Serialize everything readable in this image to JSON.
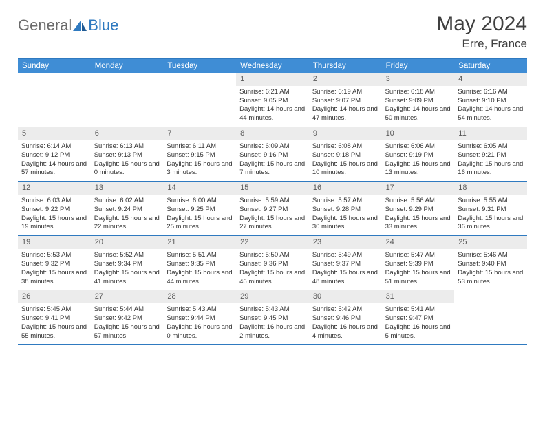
{
  "logo": {
    "general": "General",
    "blue": "Blue"
  },
  "title": "May 2024",
  "location": "Erre, France",
  "colors": {
    "header_bg": "#3f8dd5",
    "border": "#2f7ac0",
    "daynum_bg": "#ececec",
    "text": "#333333",
    "title_text": "#404040"
  },
  "weekdays": [
    "Sunday",
    "Monday",
    "Tuesday",
    "Wednesday",
    "Thursday",
    "Friday",
    "Saturday"
  ],
  "weeks": [
    [
      {
        "n": "",
        "sr": "",
        "ss": "",
        "dl": ""
      },
      {
        "n": "",
        "sr": "",
        "ss": "",
        "dl": ""
      },
      {
        "n": "",
        "sr": "",
        "ss": "",
        "dl": ""
      },
      {
        "n": "1",
        "sr": "6:21 AM",
        "ss": "9:05 PM",
        "dl": "14 hours and 44 minutes."
      },
      {
        "n": "2",
        "sr": "6:19 AM",
        "ss": "9:07 PM",
        "dl": "14 hours and 47 minutes."
      },
      {
        "n": "3",
        "sr": "6:18 AM",
        "ss": "9:09 PM",
        "dl": "14 hours and 50 minutes."
      },
      {
        "n": "4",
        "sr": "6:16 AM",
        "ss": "9:10 PM",
        "dl": "14 hours and 54 minutes."
      }
    ],
    [
      {
        "n": "5",
        "sr": "6:14 AM",
        "ss": "9:12 PM",
        "dl": "14 hours and 57 minutes."
      },
      {
        "n": "6",
        "sr": "6:13 AM",
        "ss": "9:13 PM",
        "dl": "15 hours and 0 minutes."
      },
      {
        "n": "7",
        "sr": "6:11 AM",
        "ss": "9:15 PM",
        "dl": "15 hours and 3 minutes."
      },
      {
        "n": "8",
        "sr": "6:09 AM",
        "ss": "9:16 PM",
        "dl": "15 hours and 7 minutes."
      },
      {
        "n": "9",
        "sr": "6:08 AM",
        "ss": "9:18 PM",
        "dl": "15 hours and 10 minutes."
      },
      {
        "n": "10",
        "sr": "6:06 AM",
        "ss": "9:19 PM",
        "dl": "15 hours and 13 minutes."
      },
      {
        "n": "11",
        "sr": "6:05 AM",
        "ss": "9:21 PM",
        "dl": "15 hours and 16 minutes."
      }
    ],
    [
      {
        "n": "12",
        "sr": "6:03 AM",
        "ss": "9:22 PM",
        "dl": "15 hours and 19 minutes."
      },
      {
        "n": "13",
        "sr": "6:02 AM",
        "ss": "9:24 PM",
        "dl": "15 hours and 22 minutes."
      },
      {
        "n": "14",
        "sr": "6:00 AM",
        "ss": "9:25 PM",
        "dl": "15 hours and 25 minutes."
      },
      {
        "n": "15",
        "sr": "5:59 AM",
        "ss": "9:27 PM",
        "dl": "15 hours and 27 minutes."
      },
      {
        "n": "16",
        "sr": "5:57 AM",
        "ss": "9:28 PM",
        "dl": "15 hours and 30 minutes."
      },
      {
        "n": "17",
        "sr": "5:56 AM",
        "ss": "9:29 PM",
        "dl": "15 hours and 33 minutes."
      },
      {
        "n": "18",
        "sr": "5:55 AM",
        "ss": "9:31 PM",
        "dl": "15 hours and 36 minutes."
      }
    ],
    [
      {
        "n": "19",
        "sr": "5:53 AM",
        "ss": "9:32 PM",
        "dl": "15 hours and 38 minutes."
      },
      {
        "n": "20",
        "sr": "5:52 AM",
        "ss": "9:34 PM",
        "dl": "15 hours and 41 minutes."
      },
      {
        "n": "21",
        "sr": "5:51 AM",
        "ss": "9:35 PM",
        "dl": "15 hours and 44 minutes."
      },
      {
        "n": "22",
        "sr": "5:50 AM",
        "ss": "9:36 PM",
        "dl": "15 hours and 46 minutes."
      },
      {
        "n": "23",
        "sr": "5:49 AM",
        "ss": "9:37 PM",
        "dl": "15 hours and 48 minutes."
      },
      {
        "n": "24",
        "sr": "5:47 AM",
        "ss": "9:39 PM",
        "dl": "15 hours and 51 minutes."
      },
      {
        "n": "25",
        "sr": "5:46 AM",
        "ss": "9:40 PM",
        "dl": "15 hours and 53 minutes."
      }
    ],
    [
      {
        "n": "26",
        "sr": "5:45 AM",
        "ss": "9:41 PM",
        "dl": "15 hours and 55 minutes."
      },
      {
        "n": "27",
        "sr": "5:44 AM",
        "ss": "9:42 PM",
        "dl": "15 hours and 57 minutes."
      },
      {
        "n": "28",
        "sr": "5:43 AM",
        "ss": "9:44 PM",
        "dl": "16 hours and 0 minutes."
      },
      {
        "n": "29",
        "sr": "5:43 AM",
        "ss": "9:45 PM",
        "dl": "16 hours and 2 minutes."
      },
      {
        "n": "30",
        "sr": "5:42 AM",
        "ss": "9:46 PM",
        "dl": "16 hours and 4 minutes."
      },
      {
        "n": "31",
        "sr": "5:41 AM",
        "ss": "9:47 PM",
        "dl": "16 hours and 5 minutes."
      },
      {
        "n": "",
        "sr": "",
        "ss": "",
        "dl": ""
      }
    ]
  ],
  "labels": {
    "sunrise": "Sunrise:",
    "sunset": "Sunset:",
    "daylight": "Daylight:"
  }
}
